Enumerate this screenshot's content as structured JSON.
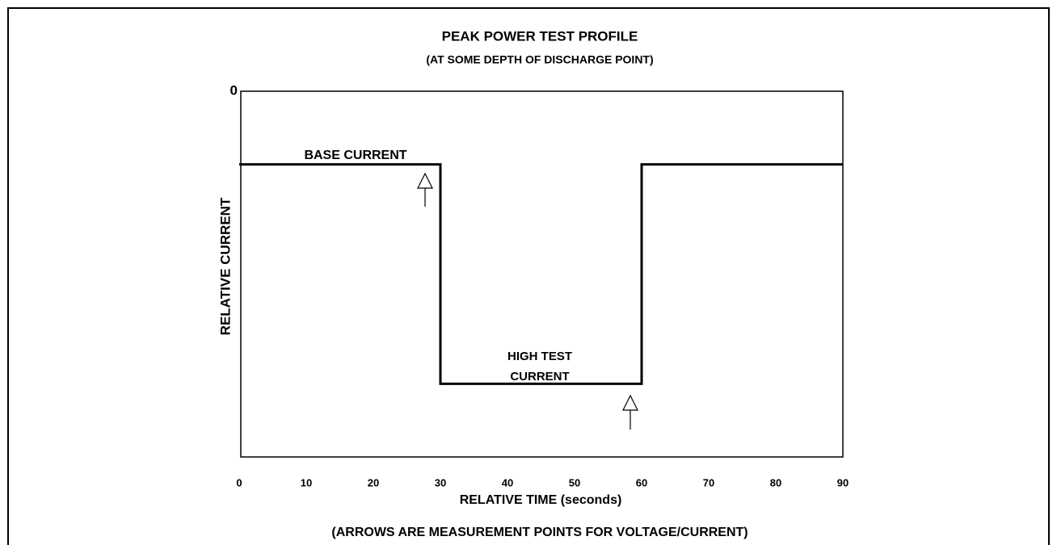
{
  "chart_data": {
    "type": "line",
    "title": "PEAK POWER TEST PROFILE",
    "subtitle": "(AT SOME DEPTH OF DISCHARGE POINT)",
    "x_label": "RELATIVE TIME (seconds)",
    "y_label": "RELATIVE CURRENT",
    "note": "(ARROWS ARE MEASUREMENT POINTS FOR VOLTAGE/CURRENT)",
    "annotations": [
      "BASE CURRENT",
      "HIGH TEST",
      "CURRENT"
    ],
    "x": [
      0,
      30,
      30,
      60,
      60,
      90
    ],
    "values": [
      -0.2,
      -0.2,
      -0.8,
      -0.8,
      -0.2,
      -0.2
    ],
    "color": "#000000",
    "xlim": [
      0,
      90
    ],
    "xticks": [
      0,
      10,
      20,
      30,
      40,
      50,
      60,
      70,
      80,
      90
    ],
    "ylim": [
      -1,
      0
    ],
    "yticks": [
      0
    ],
    "grid": false
  }
}
